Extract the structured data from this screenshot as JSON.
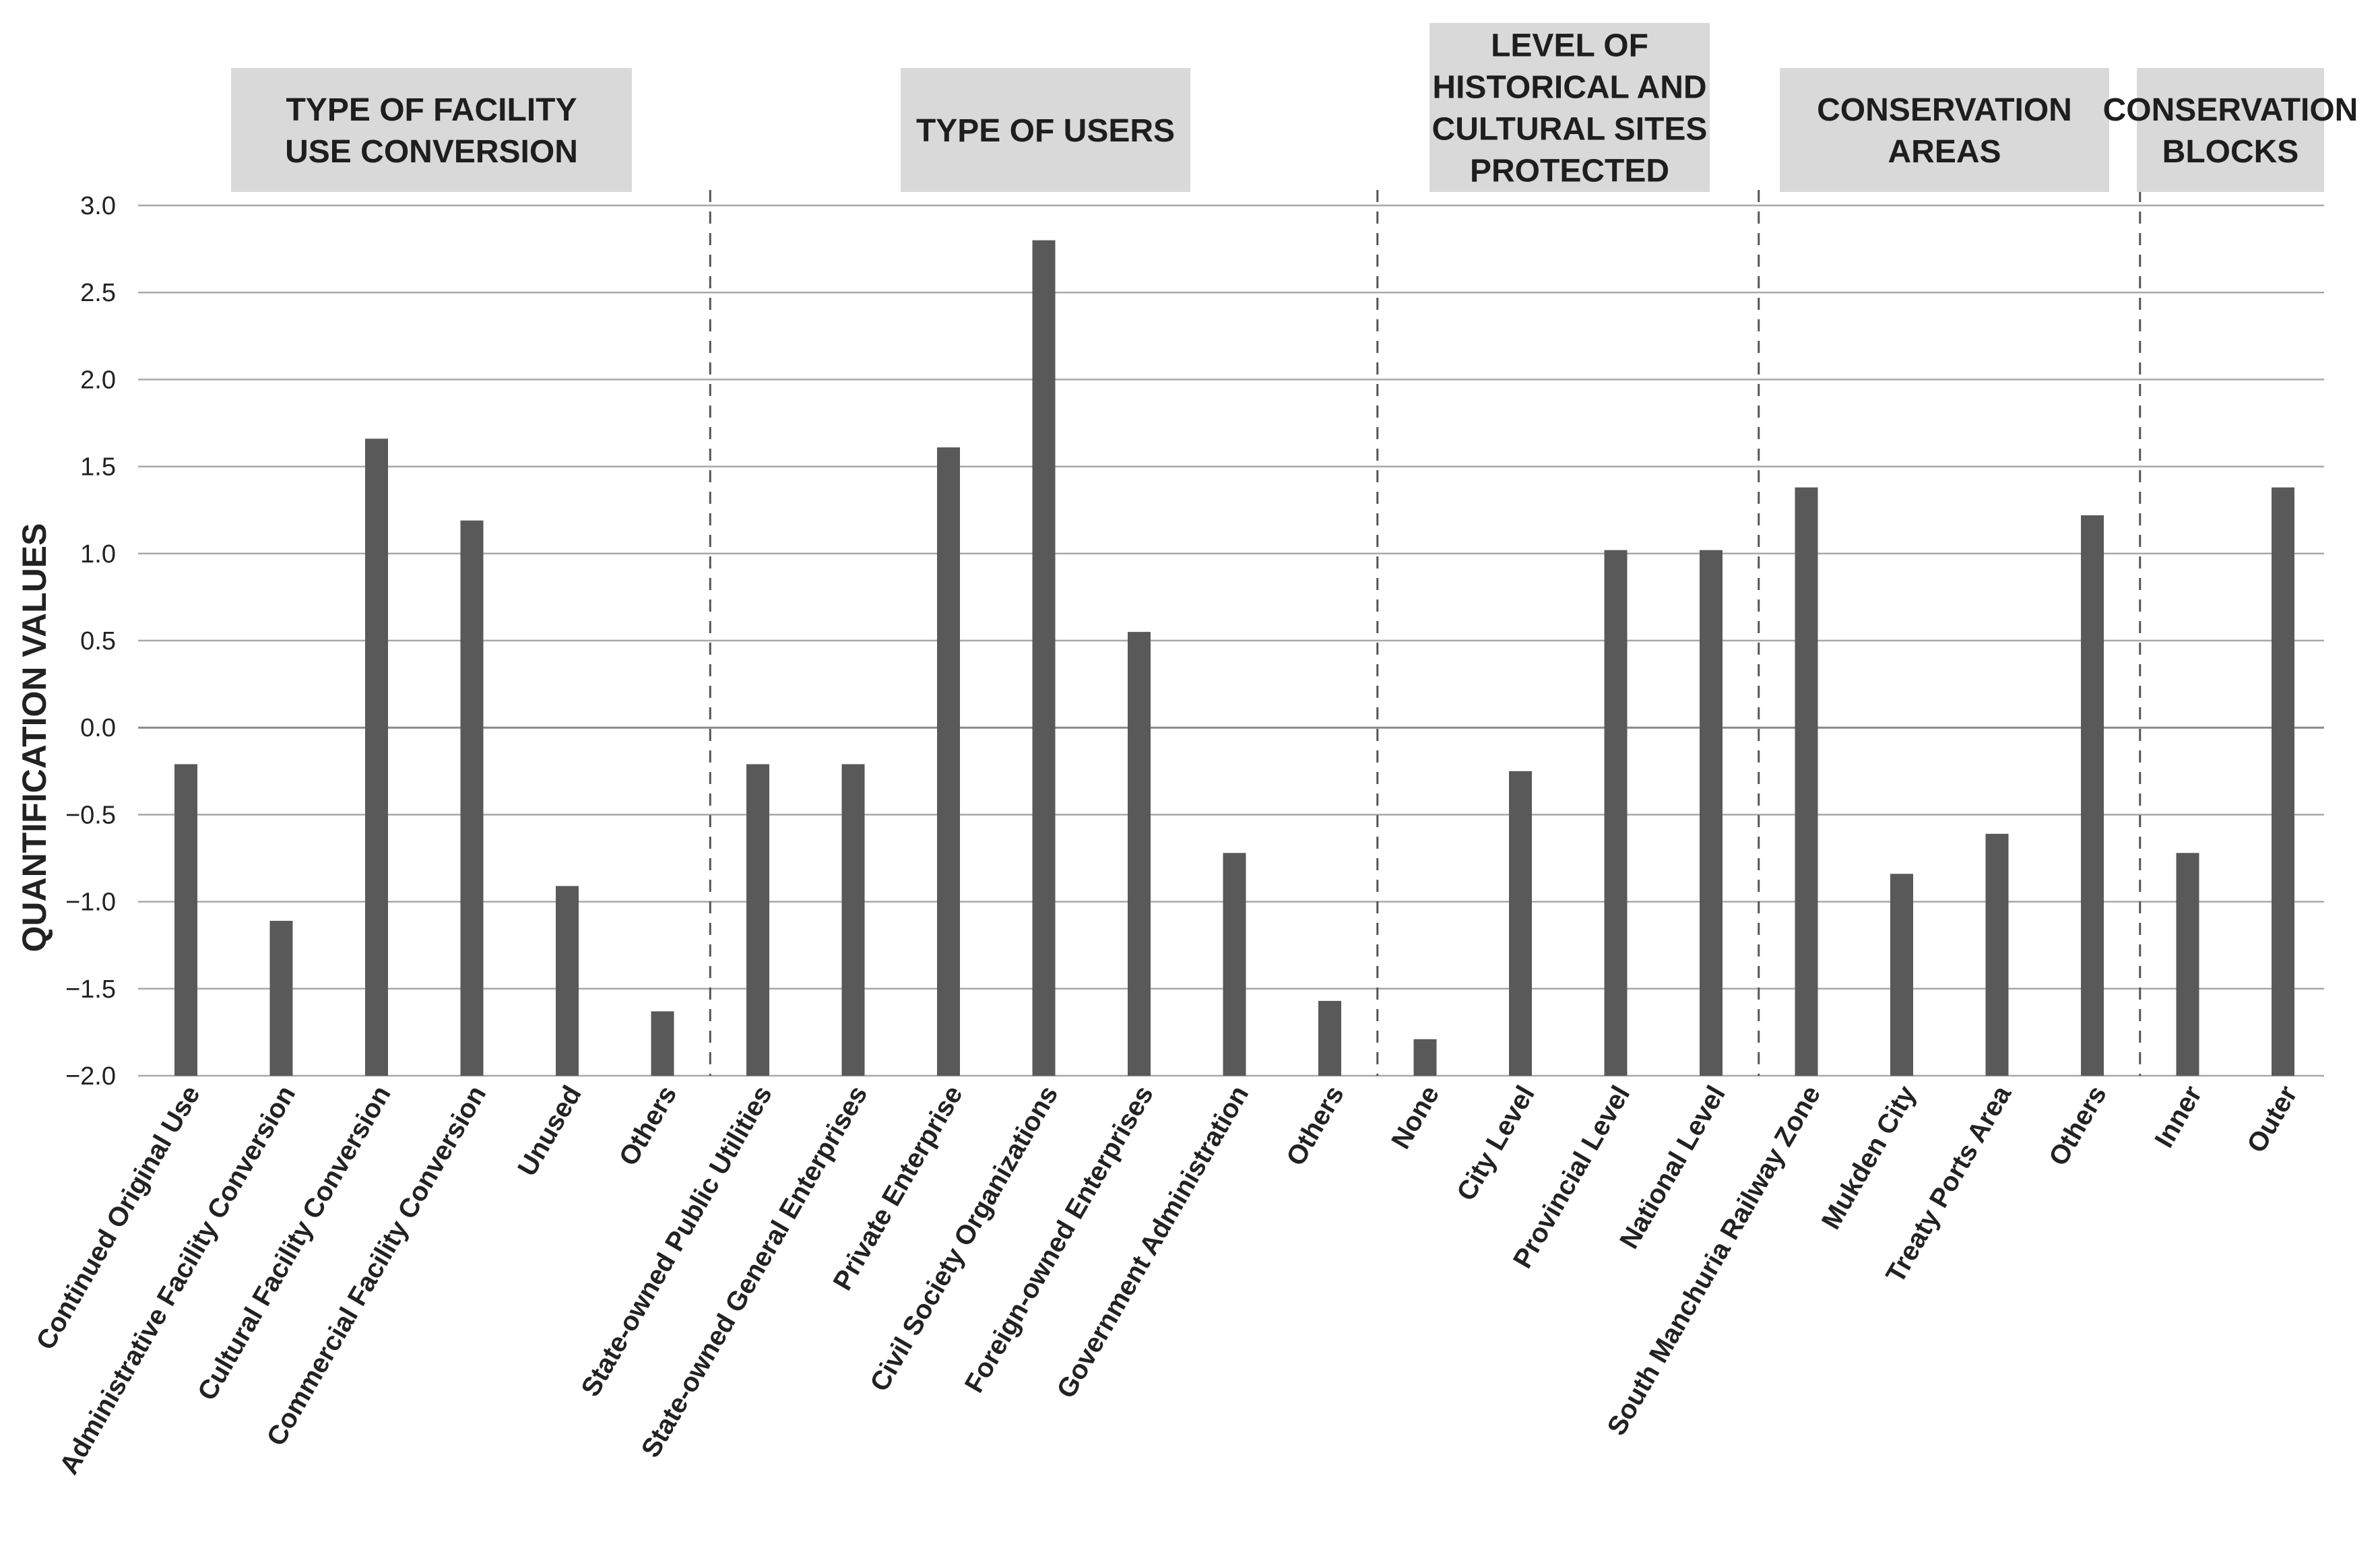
{
  "chart_data": {
    "type": "bar",
    "ylabel": "QUANTIFICATION VALUES",
    "xlabel": "",
    "ylim": [
      -2.0,
      3.0
    ],
    "yticks": [
      "3.0",
      "2.5",
      "2.0",
      "1.5",
      "1.0",
      "0.5",
      "0.0",
      "−0.5",
      "−1.0",
      "−1.5",
      "−2.0"
    ],
    "grid": true,
    "bar_color": "#595959",
    "groups": [
      {
        "title": [
          "TYPE OF FACILITY",
          "USE CONVERSION"
        ],
        "categories": [
          "Continued Original Use",
          "Administrative Facility Conversion",
          "Cultural Facility Conversion",
          "Commercial Facility Conversion",
          "Unused",
          "Others"
        ],
        "values": [
          -0.21,
          -1.11,
          1.66,
          1.19,
          -0.91,
          -1.63
        ]
      },
      {
        "title": [
          "TYPE OF USERS"
        ],
        "categories": [
          "State-owned Public Utilities",
          "State-owned General Enterprises",
          "Private Enterprise",
          "Civil Society Organizations",
          "Foreign-owned Enterprises",
          "Government Administration",
          "Others"
        ],
        "values": [
          -0.21,
          -0.21,
          1.61,
          2.8,
          0.55,
          -0.72,
          -1.57
        ]
      },
      {
        "title": [
          "LEVEL OF",
          "HISTORICAL AND",
          "CULTURAL SITES",
          "PROTECTED"
        ],
        "categories": [
          "None",
          "City Level",
          "Provincial Level",
          "National Level"
        ],
        "values": [
          -1.79,
          -0.25,
          1.02,
          1.02
        ]
      },
      {
        "title": [
          "CONSERVATION",
          "AREAS"
        ],
        "categories": [
          "South Manchuria Railway Zone",
          "Mukden City",
          "Treaty Ports Area",
          "Others"
        ],
        "values": [
          1.38,
          -0.84,
          -0.61,
          1.22
        ]
      },
      {
        "title": [
          "CONSERVATION",
          "BLOCKS"
        ],
        "categories": [
          "Inner",
          "Outer"
        ],
        "values": [
          -0.72,
          1.38
        ]
      }
    ]
  }
}
